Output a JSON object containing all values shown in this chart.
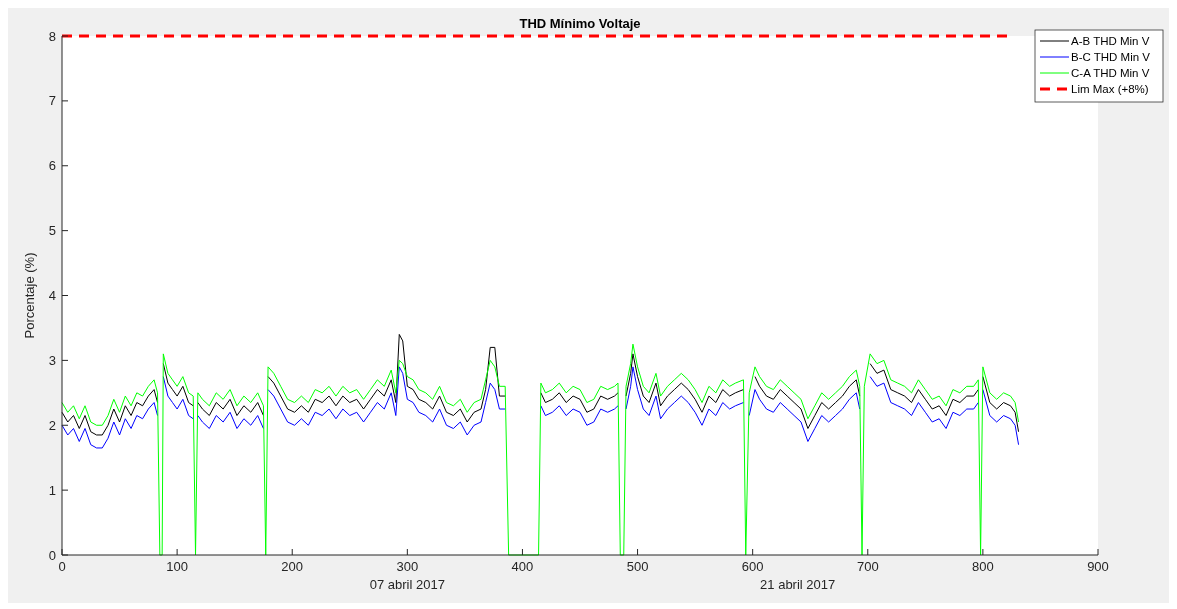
{
  "chart_data": {
    "type": "line",
    "title": "THD Mínimo Voltaje",
    "ylabel": "Porcentaje (%)",
    "x": [
      0,
      5,
      10,
      15,
      20,
      25,
      30,
      35,
      40,
      45,
      50,
      55,
      60,
      65,
      70,
      75,
      80,
      83,
      85,
      87,
      88,
      92,
      96,
      100,
      105,
      110,
      114,
      116,
      118,
      122,
      128,
      134,
      140,
      146,
      152,
      158,
      164,
      170,
      175,
      177,
      179,
      184,
      190,
      196,
      202,
      208,
      214,
      220,
      226,
      232,
      238,
      244,
      250,
      256,
      262,
      268,
      274,
      280,
      286,
      290,
      293,
      296,
      300,
      305,
      310,
      316,
      322,
      328,
      334,
      340,
      346,
      352,
      358,
      364,
      368,
      372,
      376,
      380,
      385,
      388,
      414,
      416,
      420,
      426,
      432,
      438,
      444,
      450,
      456,
      462,
      468,
      474,
      480,
      483,
      485,
      488,
      490,
      494,
      496,
      500,
      505,
      510,
      516,
      520,
      526,
      532,
      538,
      544,
      550,
      556,
      562,
      568,
      574,
      580,
      585,
      592,
      594,
      597,
      602,
      606,
      612,
      618,
      624,
      630,
      636,
      642,
      648,
      654,
      660,
      666,
      672,
      678,
      684,
      690,
      693,
      695,
      697,
      702,
      708,
      714,
      720,
      726,
      732,
      738,
      744,
      750,
      756,
      762,
      768,
      774,
      780,
      786,
      792,
      796,
      798,
      800,
      806,
      812,
      818,
      824,
      828,
      831
    ],
    "series": [
      {
        "name": "A-B THD Min V",
        "color": "#000000",
        "values": [
          2.2,
          2.05,
          2.15,
          1.95,
          2.15,
          1.9,
          1.85,
          1.85,
          2.0,
          2.25,
          2.05,
          2.3,
          2.15,
          2.35,
          2.3,
          2.45,
          2.55,
          2.35,
          null,
          null,
          2.95,
          2.65,
          2.55,
          2.45,
          2.6,
          2.35,
          2.3,
          null,
          2.35,
          2.25,
          2.15,
          2.35,
          2.25,
          2.4,
          2.15,
          2.3,
          2.2,
          2.35,
          2.15,
          null,
          2.75,
          2.65,
          2.45,
          2.25,
          2.2,
          2.3,
          2.2,
          2.4,
          2.35,
          2.45,
          2.3,
          2.45,
          2.35,
          2.4,
          2.25,
          2.4,
          2.55,
          2.45,
          2.7,
          2.35,
          3.4,
          3.3,
          2.6,
          2.55,
          2.4,
          2.35,
          2.25,
          2.45,
          2.2,
          2.15,
          2.25,
          2.05,
          2.2,
          2.25,
          2.55,
          3.2,
          3.2,
          2.45,
          2.45,
          null,
          null,
          2.5,
          2.35,
          2.4,
          2.5,
          2.35,
          2.45,
          2.4,
          2.2,
          2.25,
          2.45,
          2.4,
          2.45,
          2.5,
          null,
          null,
          2.45,
          2.8,
          3.1,
          2.75,
          2.45,
          2.35,
          2.65,
          2.3,
          2.45,
          2.55,
          2.65,
          2.55,
          2.4,
          2.2,
          2.45,
          2.35,
          2.55,
          2.45,
          2.5,
          2.55,
          null,
          null,
          2.75,
          2.6,
          2.45,
          2.4,
          2.55,
          2.45,
          2.35,
          2.25,
          1.95,
          2.15,
          2.35,
          2.25,
          2.35,
          2.45,
          2.6,
          2.7,
          2.45,
          null,
          null,
          2.95,
          2.8,
          2.85,
          2.55,
          2.5,
          2.45,
          2.35,
          2.55,
          2.4,
          2.25,
          2.3,
          2.15,
          2.4,
          2.35,
          2.45,
          2.45,
          2.55,
          null,
          2.75,
          2.35,
          2.25,
          2.35,
          2.3,
          2.2,
          1.9
        ]
      },
      {
        "name": "B-C THD Min V",
        "color": "#0000ff",
        "values": [
          2.0,
          1.85,
          1.95,
          1.75,
          1.95,
          1.7,
          1.65,
          1.65,
          1.8,
          2.05,
          1.85,
          2.1,
          1.95,
          2.15,
          2.1,
          2.25,
          2.35,
          2.15,
          null,
          null,
          2.75,
          2.45,
          2.35,
          2.25,
          2.4,
          2.15,
          2.1,
          null,
          2.15,
          2.05,
          1.95,
          2.15,
          2.05,
          2.2,
          1.95,
          2.1,
          2.0,
          2.15,
          1.95,
          null,
          2.55,
          2.45,
          2.25,
          2.05,
          2.0,
          2.1,
          2.0,
          2.2,
          2.15,
          2.25,
          2.1,
          2.25,
          2.15,
          2.2,
          2.05,
          2.2,
          2.35,
          2.25,
          2.5,
          2.15,
          2.9,
          2.8,
          2.4,
          2.35,
          2.2,
          2.15,
          2.05,
          2.25,
          2.0,
          1.95,
          2.05,
          1.85,
          2.0,
          2.05,
          2.35,
          2.65,
          2.55,
          2.25,
          2.25,
          null,
          null,
          2.3,
          2.15,
          2.2,
          2.3,
          2.15,
          2.25,
          2.2,
          2.0,
          2.05,
          2.25,
          2.2,
          2.25,
          2.3,
          null,
          null,
          2.25,
          2.6,
          2.9,
          2.55,
          2.25,
          2.15,
          2.45,
          2.1,
          2.25,
          2.35,
          2.45,
          2.35,
          2.2,
          2.0,
          2.25,
          2.15,
          2.35,
          2.25,
          2.3,
          2.35,
          null,
          2.15,
          2.55,
          2.4,
          2.25,
          2.2,
          2.35,
          2.25,
          2.15,
          2.05,
          1.75,
          1.95,
          2.15,
          2.05,
          2.15,
          2.25,
          2.4,
          2.5,
          2.25,
          null,
          null,
          2.75,
          2.6,
          2.65,
          2.35,
          2.3,
          2.25,
          2.15,
          2.35,
          2.2,
          2.05,
          2.1,
          1.95,
          2.2,
          2.15,
          2.25,
          2.25,
          2.35,
          null,
          2.55,
          2.15,
          2.05,
          2.15,
          2.1,
          2.0,
          1.7
        ]
      },
      {
        "name": "C-A THD Min V",
        "color": "#00ff00",
        "values": [
          2.35,
          2.2,
          2.3,
          2.1,
          2.3,
          2.05,
          2.0,
          2.0,
          2.15,
          2.4,
          2.2,
          2.45,
          2.3,
          2.5,
          2.45,
          2.6,
          2.7,
          2.5,
          0,
          0,
          3.1,
          2.8,
          2.7,
          2.6,
          2.75,
          2.5,
          2.45,
          0,
          2.5,
          2.4,
          2.3,
          2.5,
          2.4,
          2.55,
          2.3,
          2.45,
          2.35,
          2.5,
          2.3,
          0,
          2.9,
          2.8,
          2.6,
          2.4,
          2.35,
          2.45,
          2.35,
          2.55,
          2.5,
          2.6,
          2.45,
          2.6,
          2.5,
          2.55,
          2.4,
          2.55,
          2.7,
          2.6,
          2.85,
          2.5,
          3.0,
          2.95,
          2.75,
          2.7,
          2.55,
          2.5,
          2.4,
          2.6,
          2.35,
          2.3,
          2.4,
          2.2,
          2.35,
          2.4,
          2.7,
          3.0,
          2.9,
          2.6,
          2.6,
          0,
          0,
          2.65,
          2.5,
          2.55,
          2.65,
          2.5,
          2.6,
          2.55,
          2.35,
          2.4,
          2.6,
          2.55,
          2.6,
          2.65,
          0,
          0,
          2.6,
          2.95,
          3.25,
          2.9,
          2.6,
          2.5,
          2.8,
          2.45,
          2.6,
          2.7,
          2.8,
          2.7,
          2.55,
          2.35,
          2.6,
          2.5,
          2.7,
          2.6,
          2.65,
          2.7,
          0,
          2.5,
          2.9,
          2.75,
          2.6,
          2.55,
          2.7,
          2.6,
          2.5,
          2.4,
          2.1,
          2.3,
          2.5,
          2.4,
          2.5,
          2.6,
          2.75,
          2.85,
          2.6,
          0,
          2.6,
          3.1,
          2.95,
          3.0,
          2.7,
          2.65,
          2.6,
          2.5,
          2.7,
          2.55,
          2.4,
          2.45,
          2.3,
          2.55,
          2.5,
          2.6,
          2.6,
          2.7,
          0,
          2.9,
          2.5,
          2.4,
          2.5,
          2.45,
          2.35,
          2.05
        ]
      },
      {
        "name": "Lim Max (+8%)",
        "color": "#ff0000",
        "line_style": "dashed",
        "x": [
          0,
          825
        ],
        "values": [
          8,
          8
        ]
      }
    ],
    "xlim": [
      0,
      900
    ],
    "xticks": [
      0,
      100,
      200,
      300,
      400,
      500,
      600,
      700,
      800,
      900
    ],
    "ylim": [
      0,
      8
    ],
    "yticks": [
      0,
      1,
      2,
      3,
      4,
      5,
      6,
      7,
      8
    ],
    "annotations": [
      "07 abril 2017",
      "21 abril 2017"
    ],
    "legend": "top right",
    "grid": false,
    "marker": "none",
    "line_style": "solid"
  }
}
